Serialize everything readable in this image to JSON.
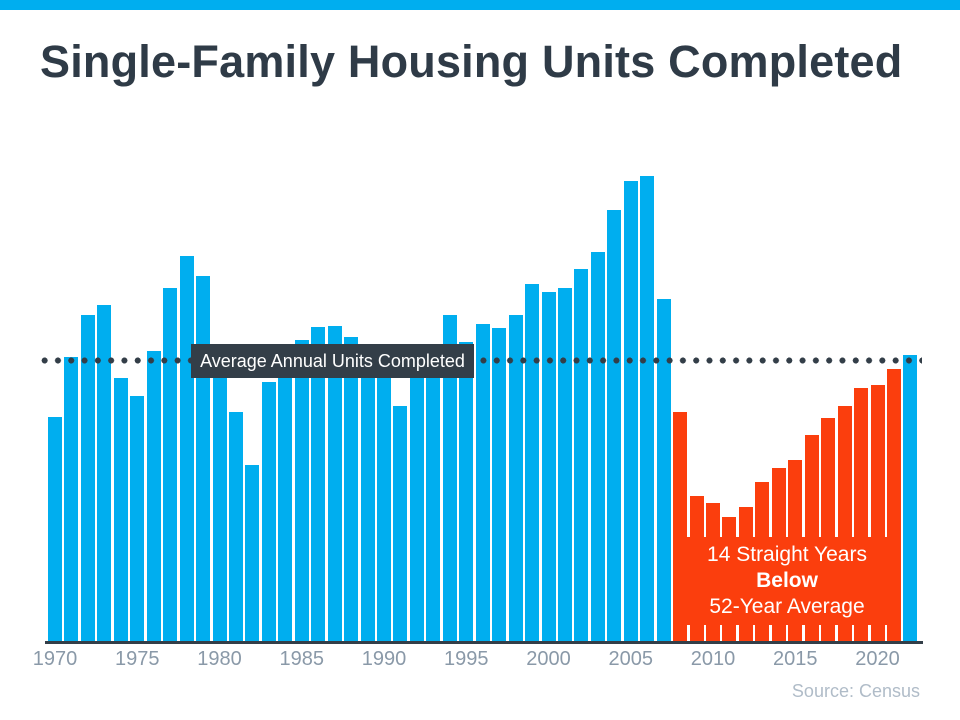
{
  "page": {
    "title": "Single-Family Housing Units Completed",
    "source": "Source: Census"
  },
  "colors": {
    "blue": "#00AEEF",
    "orange": "#FB3E0D",
    "dark": "#333E48",
    "title_text": "#2F3B47",
    "axis_text": "#8A99A8",
    "source_text": "#B0BCC8",
    "white": "#FFFFFF"
  },
  "annotation": {
    "line1": "14 Straight Years",
    "line2": "Below",
    "line3": "52-Year Average"
  },
  "chart_data": {
    "type": "bar",
    "title": "Single-Family Housing Units Completed",
    "units": "thousands of units (estimated from bar heights)",
    "x": [
      1970,
      1971,
      1972,
      1973,
      1974,
      1975,
      1976,
      1977,
      1978,
      1979,
      1980,
      1981,
      1982,
      1983,
      1984,
      1985,
      1986,
      1987,
      1988,
      1989,
      1990,
      1991,
      1992,
      1993,
      1994,
      1995,
      1996,
      1997,
      1998,
      1999,
      2000,
      2001,
      2002,
      2003,
      2004,
      2005,
      2006,
      2007,
      2008,
      2009,
      2010,
      2011,
      2012,
      2013,
      2014,
      2015,
      2016,
      2017,
      2018,
      2019,
      2020,
      2021,
      2022
    ],
    "values": [
      802,
      1014,
      1160,
      1197,
      940,
      875,
      1034,
      1258,
      1369,
      1301,
      957,
      819,
      632,
      924,
      1025,
      1072,
      1120,
      1123,
      1085,
      1026,
      966,
      838,
      964,
      1039,
      1160,
      1066,
      1129,
      1116,
      1160,
      1270,
      1242,
      1256,
      1325,
      1386,
      1532,
      1636,
      1654,
      1218,
      819,
      520,
      496,
      447,
      483,
      569,
      620,
      648,
      738,
      795,
      840,
      903,
      912,
      970,
      1019
    ],
    "x_ticks": [
      "1970",
      "1975",
      "1980",
      "1985",
      "1990",
      "1995",
      "2000",
      "2005",
      "2010",
      "2015",
      "2020"
    ],
    "average_line": {
      "label": "Average Annual Units Completed",
      "value_thousands": 1002
    },
    "highlight": {
      "start_year": 2008,
      "end_year": 2021,
      "label": "14 Straight Years Below 52-Year Average",
      "color_key": "orange"
    },
    "grid": "off",
    "legend": "none"
  }
}
